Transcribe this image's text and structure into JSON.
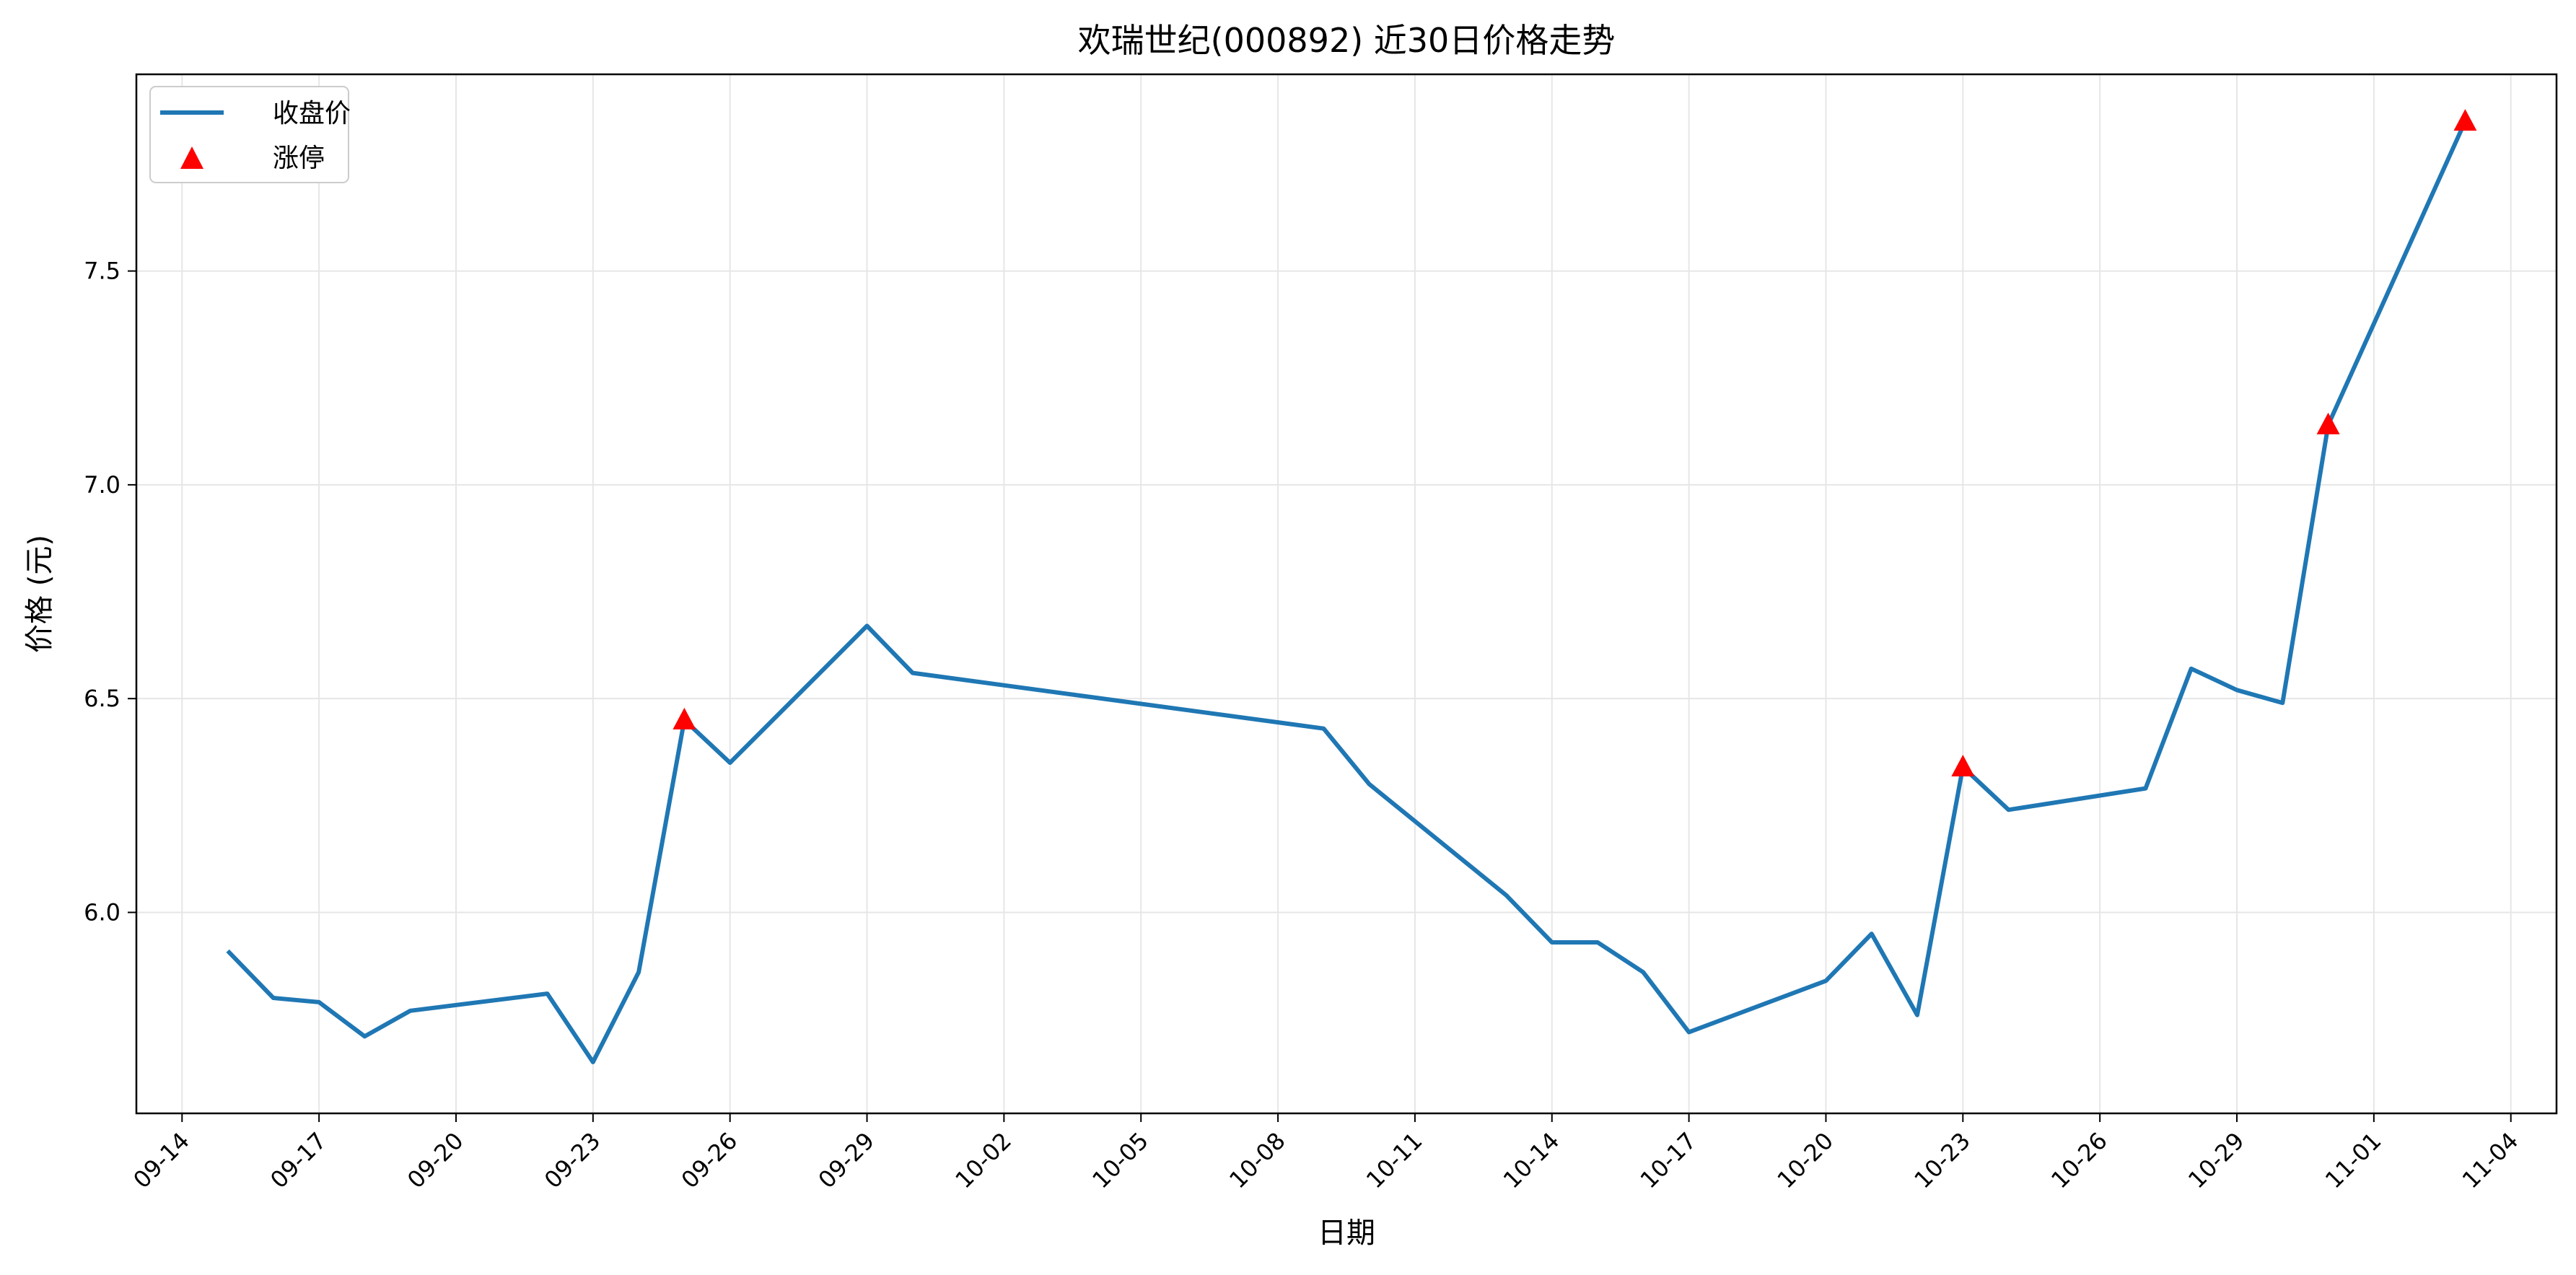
{
  "chart_data": {
    "type": "line",
    "title": "欢瑞世纪(000892) 近30日价格走势",
    "xlabel": "日期",
    "ylabel": "价格 (元)",
    "grid": true,
    "legend_position": "top-left",
    "x_ticks": [
      "09-14",
      "09-17",
      "09-20",
      "09-23",
      "09-26",
      "09-29",
      "10-02",
      "10-05",
      "10-08",
      "10-11",
      "10-14",
      "10-17",
      "10-20",
      "10-23",
      "10-26",
      "10-29",
      "11-01",
      "11-04"
    ],
    "y_ticks": [
      "6.0",
      "6.5",
      "7.0",
      "7.5"
    ],
    "ylim": [
      5.53,
      7.96
    ],
    "xlim": [
      "2024-09-13",
      "2024-11-05"
    ],
    "series": [
      {
        "name": "收盘价",
        "color": "#1f77b4",
        "x": [
          "2024-09-15",
          "2024-09-16",
          "2024-09-17",
          "2024-09-18",
          "2024-09-19",
          "2024-09-22",
          "2024-09-23",
          "2024-09-24",
          "2024-09-25",
          "2024-09-26",
          "2024-09-29",
          "2024-09-30",
          "2024-10-09",
          "2024-10-10",
          "2024-10-13",
          "2024-10-14",
          "2024-10-15",
          "2024-10-16",
          "2024-10-17",
          "2024-10-20",
          "2024-10-21",
          "2024-10-22",
          "2024-10-23",
          "2024-10-24",
          "2024-10-27",
          "2024-10-28",
          "2024-10-29",
          "2024-10-30",
          "2024-10-31",
          "2024-11-03"
        ],
        "values": [
          5.91,
          5.8,
          5.79,
          5.71,
          5.77,
          5.81,
          5.65,
          5.86,
          6.45,
          6.35,
          6.67,
          6.56,
          6.43,
          6.3,
          6.04,
          5.93,
          5.93,
          5.86,
          5.72,
          5.84,
          5.95,
          5.76,
          6.34,
          6.24,
          6.29,
          6.57,
          6.52,
          6.49,
          7.14,
          7.85
        ]
      },
      {
        "name": "涨停",
        "color": "#ff0000",
        "marker": "triangle",
        "x": [
          "2024-09-25",
          "2024-10-23",
          "2024-10-31",
          "2024-11-03"
        ],
        "values": [
          6.45,
          6.34,
          7.14,
          7.85
        ]
      }
    ]
  }
}
